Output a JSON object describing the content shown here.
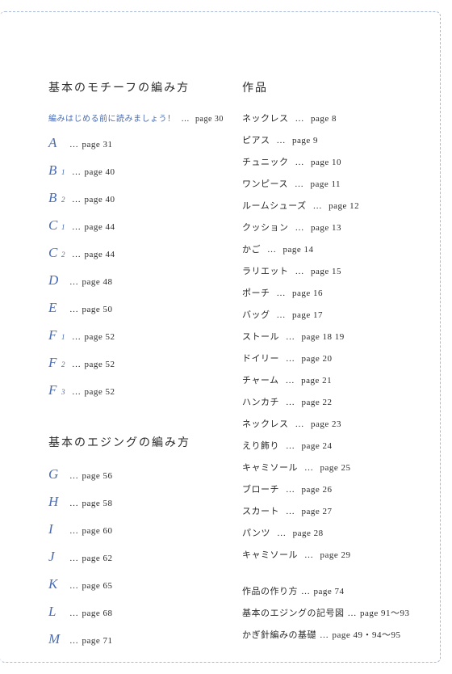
{
  "colors": {
    "accent": "#4a6db5",
    "text": "#2a2a2a",
    "border": "#a8b8d8",
    "background": "#ffffff"
  },
  "left": {
    "section1_title": "基本のモチーフの編み方",
    "intro_text": "編みはじめる前に読みましょう！",
    "intro_dots": "…",
    "intro_page": "page 30",
    "motifs": [
      {
        "letter": "A",
        "sub": "",
        "page": "page 31"
      },
      {
        "letter": "B",
        "sub": "1",
        "page": "page 40"
      },
      {
        "letter": "B",
        "sub": "2",
        "page": "page 40"
      },
      {
        "letter": "C",
        "sub": "1",
        "page": "page 44"
      },
      {
        "letter": "C",
        "sub": "2",
        "page": "page 44"
      },
      {
        "letter": "D",
        "sub": "",
        "page": "page 48"
      },
      {
        "letter": "E",
        "sub": "",
        "page": "page 50"
      },
      {
        "letter": "F",
        "sub": "1",
        "page": "page 52"
      },
      {
        "letter": "F",
        "sub": "2",
        "page": "page 52"
      },
      {
        "letter": "F",
        "sub": "3",
        "page": "page 52"
      }
    ],
    "section2_title": "基本のエジングの編み方",
    "edgings": [
      {
        "letter": "G",
        "page": "page 56"
      },
      {
        "letter": "H",
        "page": "page 58"
      },
      {
        "letter": "I",
        "page": "page 60"
      },
      {
        "letter": "J",
        "page": "page 62"
      },
      {
        "letter": "K",
        "page": "page 65"
      },
      {
        "letter": "L",
        "page": "page 68"
      },
      {
        "letter": "M",
        "page": "page 71"
      }
    ]
  },
  "right": {
    "section_title": "作品",
    "works": [
      {
        "name": "ネックレス",
        "page": "page 8"
      },
      {
        "name": "ピアス",
        "page": "page 9"
      },
      {
        "name": "チュニック",
        "page": "page 10"
      },
      {
        "name": "ワンピース",
        "page": "page 11"
      },
      {
        "name": "ルームシューズ",
        "page": "page 12"
      },
      {
        "name": "クッション",
        "page": "page 13"
      },
      {
        "name": "かご",
        "page": "page 14"
      },
      {
        "name": "ラリエット",
        "page": "page 15"
      },
      {
        "name": "ポーチ",
        "page": "page 16"
      },
      {
        "name": "バッグ",
        "page": "page 17"
      },
      {
        "name": "ストール",
        "page": "page 18  19"
      },
      {
        "name": "ドイリー",
        "page": "page 20"
      },
      {
        "name": "チャーム",
        "page": "page 21"
      },
      {
        "name": "ハンカチ",
        "page": "page 22"
      },
      {
        "name": "ネックレス",
        "page": "page 23"
      },
      {
        "name": "えり飾り",
        "page": "page 24"
      },
      {
        "name": "キャミソール",
        "page": "page 25"
      },
      {
        "name": "ブローチ",
        "page": "page 26"
      },
      {
        "name": "スカート",
        "page": "page 27"
      },
      {
        "name": "パンツ",
        "page": "page 28"
      },
      {
        "name": "キャミソール",
        "page": "page 29"
      }
    ],
    "appendix": [
      {
        "name": "作品の作り方",
        "page": "page 74"
      },
      {
        "name": "基本のエジングの記号図",
        "page": "page 91〜93"
      },
      {
        "name": "かぎ針編みの基礎",
        "page": "page 49・94〜95"
      }
    ]
  },
  "dots": "…"
}
